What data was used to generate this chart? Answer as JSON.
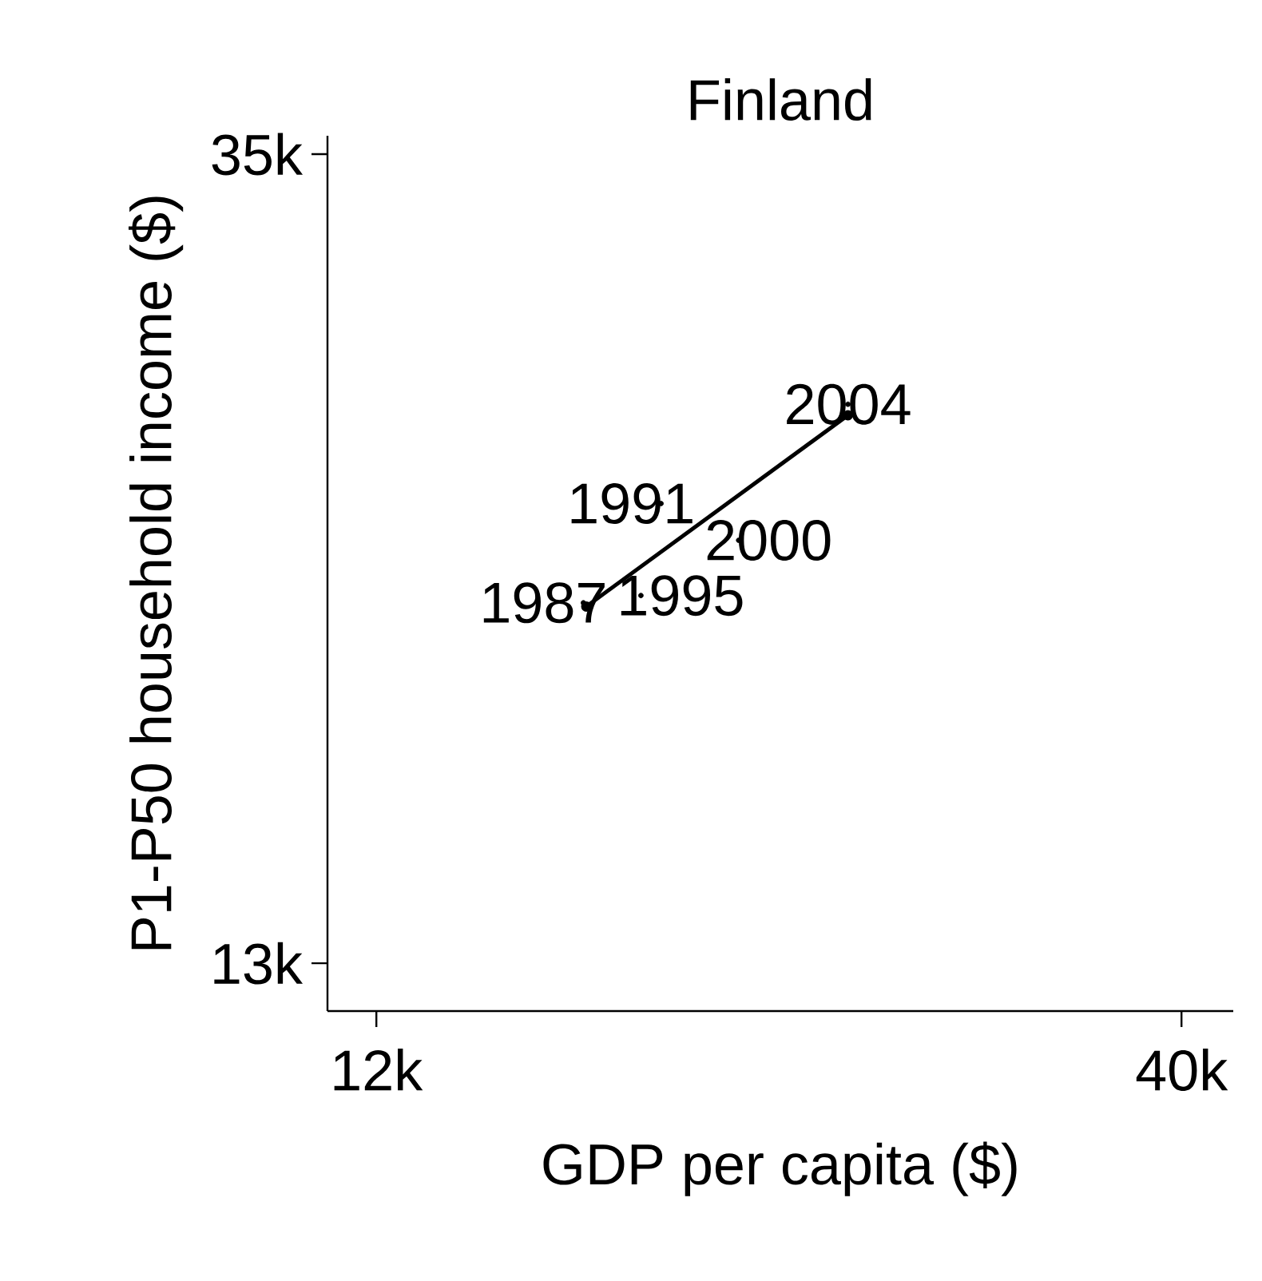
{
  "chart_data": {
    "type": "scatter",
    "marker": "circle",
    "title": "Finland",
    "xlabel": "GDP per capita ($)",
    "ylabel": "P1-P50 household income ($)",
    "xlim": [
      10300,
      41800
    ],
    "ylim": [
      11700,
      35500
    ],
    "xticks": [
      {
        "value": 12000,
        "label": "12k"
      },
      {
        "value": 40000,
        "label": "40k"
      }
    ],
    "yticks": [
      {
        "value": 13000,
        "label": "13k"
      },
      {
        "value": 35000,
        "label": "35k"
      }
    ],
    "grid": false,
    "series": [
      {
        "color": "#000000",
        "x": [
          19200,
          21900,
          21200,
          24600,
          28400
        ],
        "values": [
          22800,
          25500,
          23000,
          24500,
          28200
        ]
      },
      {
        "type": "line",
        "color": "#000000",
        "x": [
          19300,
          28400
        ],
        "values": [
          22700,
          27900
        ]
      }
    ],
    "annotations": [
      {
        "text": "1987",
        "x": 19200,
        "y": 22800
      },
      {
        "text": "1991",
        "x": 21900,
        "y": 25500
      },
      {
        "text": "1995",
        "x": 21200,
        "y": 23000
      },
      {
        "text": "2000",
        "x": 24600,
        "y": 24500
      },
      {
        "text": "2004",
        "x": 28400,
        "y": 28200
      }
    ]
  }
}
